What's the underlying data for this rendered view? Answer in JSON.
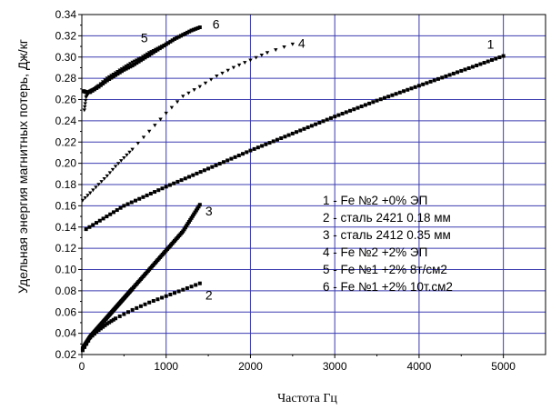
{
  "chart_data": {
    "type": "scatter",
    "title": "",
    "xlabel": "Частота Гц",
    "ylabel": "Удельная энергия магнитных потерь, Дж/кг",
    "xlim": [
      0,
      5500
    ],
    "ylim": [
      0.02,
      0.34
    ],
    "x_ticks": [
      "0",
      "1000",
      "2000",
      "3000",
      "4000",
      "5000"
    ],
    "y_ticks": [
      "0.02",
      "0.04",
      "0.06",
      "0.08",
      "0.10",
      "0.12",
      "0.14",
      "0.16",
      "0.18",
      "0.20",
      "0.22",
      "0.24",
      "0.26",
      "0.28",
      "0.30",
      "0.32",
      "0.34"
    ],
    "grid": true,
    "grid_color": "#3b3bb0",
    "legend": {
      "placement": "center-right",
      "entries": [
        "1 - Fe №2 +0% ЭП",
        "2 - сталь 2421 0.18 мм",
        "3 - сталь 2412 0.35 мм",
        "4 - Fe №2 +2% ЭП",
        "5 - Fe №1 +2% 8т/см2",
        "6 - Fe №1 +2% 10т.см2"
      ]
    },
    "series": [
      {
        "label": "1",
        "marker": "square",
        "x": [
          50,
          500,
          1000,
          1500,
          2000,
          2500,
          3000,
          3500,
          4000,
          4500,
          5000
        ],
        "y": [
          0.138,
          0.16,
          0.178,
          0.195,
          0.212,
          0.228,
          0.244,
          0.259,
          0.273,
          0.287,
          0.301
        ]
      },
      {
        "label": "2",
        "marker": "square",
        "x": [
          10,
          100,
          200,
          300,
          400,
          600,
          800,
          1000,
          1200,
          1400
        ],
        "y": [
          0.024,
          0.036,
          0.043,
          0.049,
          0.054,
          0.062,
          0.069,
          0.075,
          0.081,
          0.087
        ]
      },
      {
        "label": "3",
        "marker": "square",
        "x": [
          10,
          100,
          200,
          300,
          400,
          500,
          600,
          800,
          1000,
          1200,
          1400
        ],
        "y": [
          0.026,
          0.037,
          0.046,
          0.055,
          0.064,
          0.073,
          0.082,
          0.1,
          0.118,
          0.136,
          0.161
        ]
      },
      {
        "label": "4",
        "marker": "triangle-down",
        "x": [
          10,
          100,
          200,
          300,
          400,
          500,
          600,
          800,
          1000,
          1200,
          1400,
          1600,
          1800,
          2000,
          2200,
          2500
        ],
        "y": [
          0.165,
          0.172,
          0.18,
          0.188,
          0.197,
          0.205,
          0.213,
          0.23,
          0.247,
          0.263,
          0.272,
          0.282,
          0.29,
          0.297,
          0.304,
          0.312
        ]
      },
      {
        "label": "5",
        "marker": "triangle-down",
        "x": [
          30,
          50,
          80,
          100,
          150,
          200,
          300,
          400,
          500,
          600,
          700,
          800,
          900,
          1000
        ],
        "y": [
          0.25,
          0.262,
          0.266,
          0.268,
          0.27,
          0.273,
          0.28,
          0.285,
          0.29,
          0.295,
          0.299,
          0.304,
          0.308,
          0.312
        ]
      },
      {
        "label": "6",
        "marker": "square",
        "x": [
          20,
          50,
          100,
          200,
          300,
          400,
          500,
          600,
          700,
          800,
          900,
          1000,
          1100,
          1200,
          1300,
          1400
        ],
        "y": [
          0.268,
          0.267,
          0.267,
          0.272,
          0.278,
          0.283,
          0.288,
          0.292,
          0.297,
          0.302,
          0.307,
          0.312,
          0.317,
          0.321,
          0.325,
          0.328
        ]
      }
    ]
  }
}
